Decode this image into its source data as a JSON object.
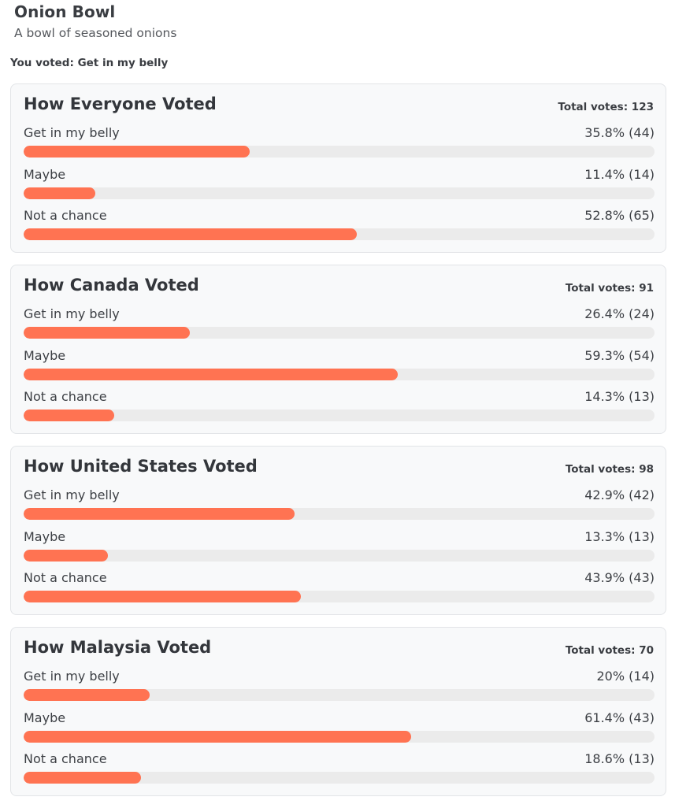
{
  "header": {
    "title": "Onion Bowl",
    "subtitle": "A bowl of seasoned onions",
    "you_voted": "You voted: Get in my belly"
  },
  "colors": {
    "bar": "#ff7352",
    "track": "#ebebeb",
    "card_bg": "#f8f9fa"
  },
  "groups": [
    {
      "title": "How Everyone Voted",
      "total": "Total votes: 123",
      "options": [
        {
          "label": "Get in my belly",
          "value_text": "35.8% (44)",
          "percent": 35.8
        },
        {
          "label": "Maybe",
          "value_text": "11.4% (14)",
          "percent": 11.4
        },
        {
          "label": "Not a chance",
          "value_text": "52.8% (65)",
          "percent": 52.8
        }
      ]
    },
    {
      "title": "How Canada Voted",
      "total": "Total votes: 91",
      "options": [
        {
          "label": "Get in my belly",
          "value_text": "26.4% (24)",
          "percent": 26.4
        },
        {
          "label": "Maybe",
          "value_text": "59.3% (54)",
          "percent": 59.3
        },
        {
          "label": "Not a chance",
          "value_text": "14.3% (13)",
          "percent": 14.3
        }
      ]
    },
    {
      "title": "How United States Voted",
      "total": "Total votes: 98",
      "options": [
        {
          "label": "Get in my belly",
          "value_text": "42.9% (42)",
          "percent": 42.9
        },
        {
          "label": "Maybe",
          "value_text": "13.3% (13)",
          "percent": 13.3
        },
        {
          "label": "Not a chance",
          "value_text": "43.9% (43)",
          "percent": 43.9
        }
      ]
    },
    {
      "title": "How Malaysia Voted",
      "total": "Total votes: 70",
      "options": [
        {
          "label": "Get in my belly",
          "value_text": "20% (14)",
          "percent": 20
        },
        {
          "label": "Maybe",
          "value_text": "61.4% (43)",
          "percent": 61.4
        },
        {
          "label": "Not a chance",
          "value_text": "18.6% (13)",
          "percent": 18.6
        }
      ]
    }
  ]
}
